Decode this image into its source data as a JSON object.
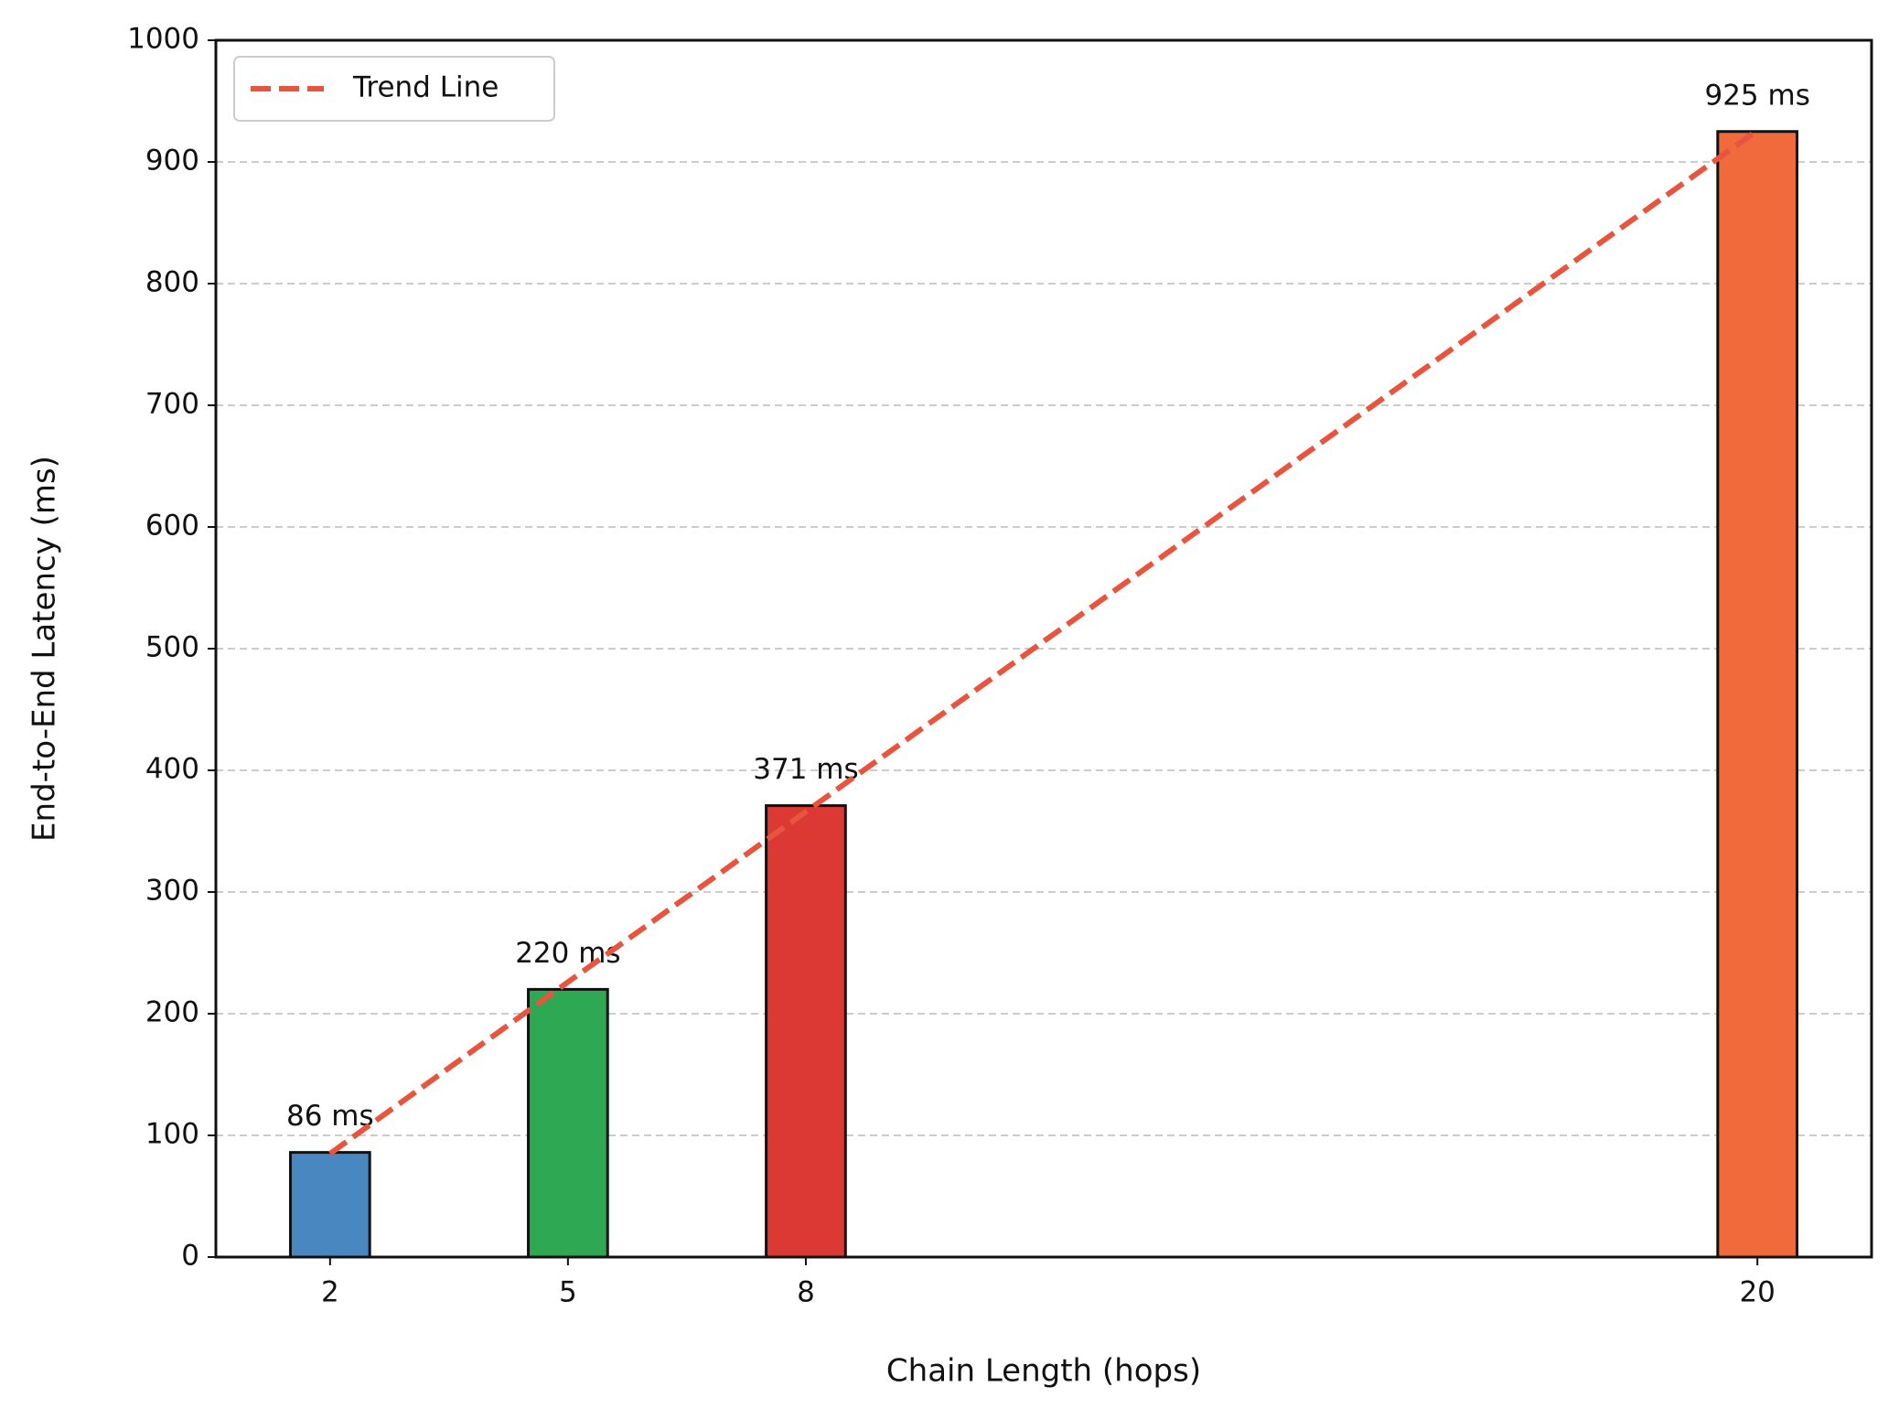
{
  "chart_data": {
    "type": "bar",
    "x_label": "Chain Length (hops)",
    "y_label": "End-to-End Latency (ms)",
    "x": [
      2,
      5,
      8,
      20
    ],
    "values": [
      86,
      220,
      371,
      925
    ],
    "value_labels": [
      "86 ms",
      "220 ms",
      "371 ms",
      "925 ms"
    ],
    "colors": [
      "#4887c0",
      "#2ea853",
      "#dc3834",
      "#f06a3c"
    ],
    "trend": {
      "name": "Trend Line",
      "color": "#e8553e",
      "x": [
        2,
        5,
        8,
        20
      ],
      "values": [
        85,
        226,
        366,
        926
      ]
    },
    "xlim": [
      0.56,
      21.44
    ],
    "xticks": [
      2,
      5,
      8,
      20
    ],
    "ylim": [
      0,
      1000
    ],
    "yticks": [
      0,
      100,
      200,
      300,
      400,
      500,
      600,
      700,
      800,
      900,
      1000
    ],
    "grid": true,
    "legend": "upper left"
  }
}
